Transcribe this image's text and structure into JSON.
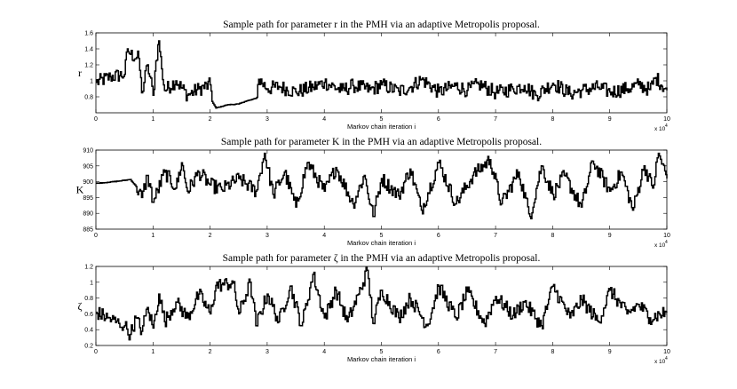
{
  "chart_data": [
    {
      "type": "line",
      "title": "Sample path for parameter r in the PMH via an adaptive Metropolis proposal.",
      "ylabel": "r",
      "xlabel": "Markov chain iteration i",
      "x_multiplier_base": "x 10",
      "x_multiplier_exp": "4",
      "xlim": [
        0,
        10
      ],
      "ylim": [
        0.6,
        1.6
      ],
      "x_ticks": [
        0,
        1,
        2,
        3,
        4,
        5,
        6,
        7,
        8,
        9,
        10
      ],
      "x_tick_labels": [
        "0",
        "1",
        "2",
        "3",
        "4",
        "5",
        "6",
        "7",
        "8",
        "9",
        "10"
      ],
      "y_ticks": [
        0.8,
        1.0,
        1.2,
        1.4,
        1.6
      ],
      "y_tick_labels": [
        "0.8",
        "1",
        "1.2",
        "1.4",
        "1.6"
      ],
      "grid": false,
      "series": [
        {
          "x": [
            0,
            0.25,
            0.5,
            0.55,
            0.6,
            0.75,
            0.8,
            0.9,
            1.0,
            1.05,
            1.1,
            1.15,
            1.2,
            1.4,
            1.6,
            1.8,
            2.0,
            2.05,
            2.1,
            2.3,
            2.5,
            2.6,
            2.7,
            2.8,
            2.85,
            3.0,
            3.2,
            3.5,
            3.8,
            4.0,
            4.3,
            4.5,
            4.8,
            5.0,
            5.3,
            5.5,
            5.7,
            6.0,
            6.3,
            6.5,
            6.7,
            7.0,
            7.3,
            7.5,
            7.7,
            8.0,
            8.3,
            8.5,
            8.8,
            9.0,
            9.3,
            9.5,
            9.7,
            9.8,
            10.0
          ],
          "y": [
            0.98,
            1.05,
            1.08,
            1.4,
            1.33,
            1.28,
            0.85,
            1.2,
            0.82,
            1.25,
            1.5,
            1.15,
            0.88,
            1.0,
            0.82,
            0.9,
            0.95,
            0.72,
            0.66,
            0.7,
            0.71,
            0.74,
            0.76,
            0.78,
            1.02,
            0.9,
            0.93,
            0.86,
            0.92,
            0.98,
            0.88,
            0.94,
            0.89,
            0.95,
            0.87,
            0.92,
            1.02,
            0.86,
            0.94,
            0.88,
            0.96,
            0.85,
            0.9,
            0.94,
            0.82,
            0.97,
            0.84,
            0.88,
            0.92,
            0.86,
            0.9,
            0.95,
            0.89,
            1.04,
            0.88
          ]
        }
      ]
    },
    {
      "type": "line",
      "title": "Sample path for parameter K in the PMH via an adaptive Metropolis proposal.",
      "ylabel": "K",
      "xlabel": "Markov chain iteration i",
      "x_multiplier_base": "x 10",
      "x_multiplier_exp": "4",
      "xlim": [
        0,
        10
      ],
      "ylim": [
        885,
        910
      ],
      "x_ticks": [
        0,
        1,
        2,
        3,
        4,
        5,
        6,
        7,
        8,
        9,
        10
      ],
      "x_tick_labels": [
        "0",
        "1",
        "2",
        "3",
        "4",
        "5",
        "6",
        "7",
        "8",
        "9",
        "10"
      ],
      "y_ticks": [
        885,
        890,
        895,
        900,
        905,
        910
      ],
      "y_tick_labels": [
        "885",
        "890",
        "895",
        "900",
        "905",
        "910"
      ],
      "grid": false,
      "series": [
        {
          "x": [
            0,
            0.2,
            0.4,
            0.6,
            0.7,
            0.8,
            0.9,
            1.0,
            1.2,
            1.4,
            1.5,
            1.6,
            1.8,
            2.0,
            2.2,
            2.5,
            2.8,
            2.95,
            3.1,
            3.3,
            3.5,
            3.7,
            4.0,
            4.2,
            4.5,
            4.7,
            4.85,
            5.0,
            5.3,
            5.5,
            5.7,
            6.0,
            6.3,
            6.6,
            6.9,
            7.1,
            7.4,
            7.6,
            7.8,
            8.0,
            8.2,
            8.5,
            8.7,
            9.0,
            9.2,
            9.4,
            9.6,
            9.75,
            9.85,
            10.0
          ],
          "y": [
            899.5,
            899.8,
            900.2,
            900.7,
            898.5,
            895.0,
            902.0,
            893.5,
            903.0,
            898.0,
            906.0,
            897.0,
            903.0,
            899.0,
            897.5,
            901.0,
            897.0,
            909.0,
            896.0,
            903.0,
            892.0,
            906.0,
            897.0,
            904.5,
            893.0,
            902.0,
            889.0,
            901.0,
            895.5,
            904.0,
            891.0,
            906.0,
            893.0,
            902.0,
            907.0,
            893.0,
            903.0,
            889.0,
            905.0,
            896.0,
            902.0,
            892.0,
            906.5,
            897.0,
            903.0,
            891.0,
            905.0,
            898.0,
            909.0,
            901.0
          ]
        }
      ]
    },
    {
      "type": "line",
      "title": "Sample path for parameter ζ in the PMH via an adaptive Metropolis proposal.",
      "ylabel": "ζ",
      "xlabel": "Markov chain iteration i",
      "x_multiplier_base": "x 10",
      "x_multiplier_exp": "4",
      "xlim": [
        0,
        10
      ],
      "ylim": [
        0.2,
        1.2
      ],
      "x_ticks": [
        0,
        1,
        2,
        3,
        4,
        5,
        6,
        7,
        8,
        9,
        10
      ],
      "x_tick_labels": [
        "0",
        "1",
        "2",
        "3",
        "4",
        "5",
        "6",
        "7",
        "8",
        "9",
        "10"
      ],
      "y_ticks": [
        0.2,
        0.4,
        0.6,
        0.8,
        1.0,
        1.2
      ],
      "y_tick_labels": [
        "0.2",
        "0.4",
        "0.6",
        "0.8",
        "1",
        "1.2"
      ],
      "grid": false,
      "series": [
        {
          "x": [
            0,
            0.2,
            0.4,
            0.5,
            0.6,
            0.7,
            0.8,
            0.9,
            1.0,
            1.1,
            1.2,
            1.4,
            1.6,
            1.8,
            2.0,
            2.1,
            2.2,
            2.4,
            2.5,
            2.7,
            2.8,
            3.0,
            3.2,
            3.4,
            3.6,
            3.8,
            4.0,
            4.2,
            4.4,
            4.6,
            4.75,
            4.85,
            5.0,
            5.3,
            5.5,
            5.8,
            6.0,
            6.3,
            6.5,
            6.8,
            7.0,
            7.3,
            7.5,
            7.8,
            8.0,
            8.3,
            8.5,
            8.8,
            9.0,
            9.3,
            9.5,
            9.7,
            10.0
          ],
          "y": [
            0.62,
            0.55,
            0.48,
            0.45,
            0.34,
            0.55,
            0.38,
            0.68,
            0.42,
            0.85,
            0.5,
            0.75,
            0.55,
            0.85,
            0.6,
            0.96,
            0.97,
            0.99,
            0.6,
            1.0,
            0.45,
            0.85,
            0.5,
            0.95,
            0.45,
            1.1,
            0.55,
            0.9,
            0.5,
            0.85,
            1.15,
            0.48,
            0.9,
            0.55,
            0.8,
            0.45,
            0.95,
            0.55,
            0.88,
            0.48,
            0.82,
            0.58,
            0.75,
            0.45,
            0.95,
            0.55,
            0.78,
            0.5,
            0.9,
            0.6,
            0.72,
            0.55,
            0.62
          ]
        }
      ]
    }
  ]
}
